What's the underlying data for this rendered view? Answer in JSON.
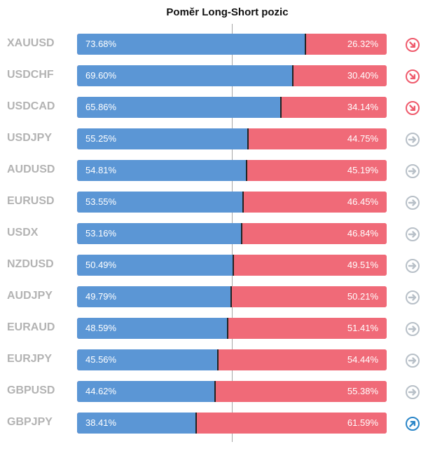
{
  "chart_data": {
    "type": "bar",
    "title": "Poměr Long-Short pozic",
    "categories": [
      "XAUUSD",
      "USDCHF",
      "USDCAD",
      "USDJPY",
      "AUDUSD",
      "EURUSD",
      "USDX",
      "NZDUSD",
      "AUDJPY",
      "EURAUD",
      "EURJPY",
      "GBPUSD",
      "GBPJPY"
    ],
    "series": [
      {
        "values": [
          73.68,
          69.6,
          65.86,
          55.25,
          54.81,
          53.55,
          53.16,
          50.49,
          49.79,
          48.59,
          45.56,
          44.62,
          38.41
        ]
      },
      {
        "values": [
          26.32,
          30.4,
          34.14,
          44.75,
          45.19,
          46.45,
          46.84,
          49.51,
          50.21,
          51.41,
          54.44,
          55.38,
          61.59
        ]
      }
    ],
    "long_labels": [
      "73.68%",
      "69.60%",
      "65.86%",
      "55.25%",
      "54.81%",
      "53.55%",
      "53.16%",
      "50.49%",
      "49.79%",
      "48.59%",
      "45.56%",
      "44.62%",
      "38.41%"
    ],
    "short_labels": [
      "26.32%",
      "30.40%",
      "34.14%",
      "44.75%",
      "45.19%",
      "46.45%",
      "46.84%",
      "49.51%",
      "50.21%",
      "51.41%",
      "54.44%",
      "55.38%",
      "61.59%"
    ],
    "signals": [
      "down-right-arrow-icon",
      "down-right-arrow-icon",
      "down-right-arrow-icon",
      "right-arrow-icon",
      "right-arrow-icon",
      "right-arrow-icon",
      "right-arrow-icon",
      "right-arrow-icon",
      "right-arrow-icon",
      "right-arrow-icon",
      "right-arrow-icon",
      "right-arrow-icon",
      "up-right-arrow-icon"
    ],
    "xlim": [
      0,
      100
    ],
    "colors": {
      "long": "#5b96d5",
      "short": "#f06a78",
      "down_signal": "#ef5a6c",
      "neutral_signal": "#b8c0c8",
      "up_signal": "#2b86c8"
    }
  }
}
